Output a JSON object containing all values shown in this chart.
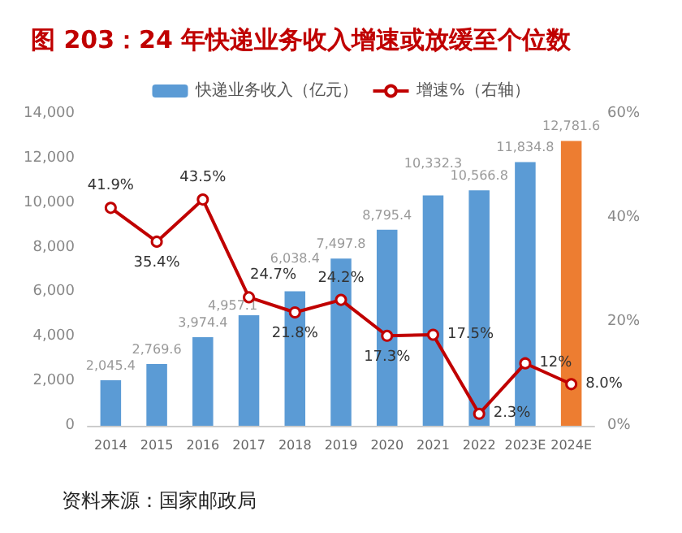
{
  "chart_data": {
    "type": "bar",
    "title": "图 203：24 年快递业务收入增速或放缓至个位数",
    "categories": [
      "2014",
      "2015",
      "2016",
      "2017",
      "2018",
      "2019",
      "2020",
      "2021",
      "2022",
      "2023E",
      "2024E"
    ],
    "series": [
      {
        "name": "快递业务收入（亿元）",
        "color": "#5b9bd5",
        "colors": [
          "#5b9bd5",
          "#5b9bd5",
          "#5b9bd5",
          "#5b9bd5",
          "#5b9bd5",
          "#5b9bd5",
          "#5b9bd5",
          "#5b9bd5",
          "#5b9bd5",
          "#5b9bd5",
          "#ed7d31"
        ],
        "values": [
          2045.4,
          2769.6,
          3974.4,
          4957.1,
          6038.4,
          7497.8,
          8795.4,
          10332.3,
          10566.8,
          11834.8,
          12781.6
        ],
        "value_labels": [
          "2,045.4",
          "2,769.6",
          "3,974.4",
          "4,957.1",
          "6,038.4",
          "7,497.8",
          "8,795.4",
          "10,332.3",
          "10,566.8",
          "11,834.8",
          "12,781.6"
        ]
      },
      {
        "name": "增速%（右轴）",
        "type": "line",
        "axis": "y2",
        "color": "#c00000",
        "values": [
          41.9,
          35.4,
          43.5,
          24.7,
          21.8,
          24.2,
          17.3,
          17.5,
          2.3,
          12,
          8.0
        ],
        "value_labels": [
          "41.9%",
          "35.4%",
          "43.5%",
          "24.7%",
          "21.8%",
          "24.2%",
          "17.3%",
          "17.5%",
          "2.3%",
          "12%",
          "8.0%"
        ]
      }
    ],
    "ylim": [
      0,
      14000
    ],
    "yticks": [
      {
        "value": 0,
        "label": "0"
      },
      {
        "value": 2000,
        "label": "2,000"
      },
      {
        "value": 4000,
        "label": "4,000"
      },
      {
        "value": 6000,
        "label": "6,000"
      },
      {
        "value": 8000,
        "label": "8,000"
      },
      {
        "value": 10000,
        "label": "10,000"
      },
      {
        "value": 12000,
        "label": "12,000"
      },
      {
        "value": 14000,
        "label": "14,000"
      }
    ],
    "y2lim": [
      0,
      60
    ],
    "y2ticks": [
      {
        "value": 0,
        "label": "0%"
      },
      {
        "value": 20,
        "label": "20%"
      },
      {
        "value": 40,
        "label": "40%"
      },
      {
        "value": 60,
        "label": "60%"
      }
    ],
    "grid": false,
    "legend": "top",
    "marker": "circle",
    "annotations": [
      "资料来源：国家邮政局"
    ]
  }
}
